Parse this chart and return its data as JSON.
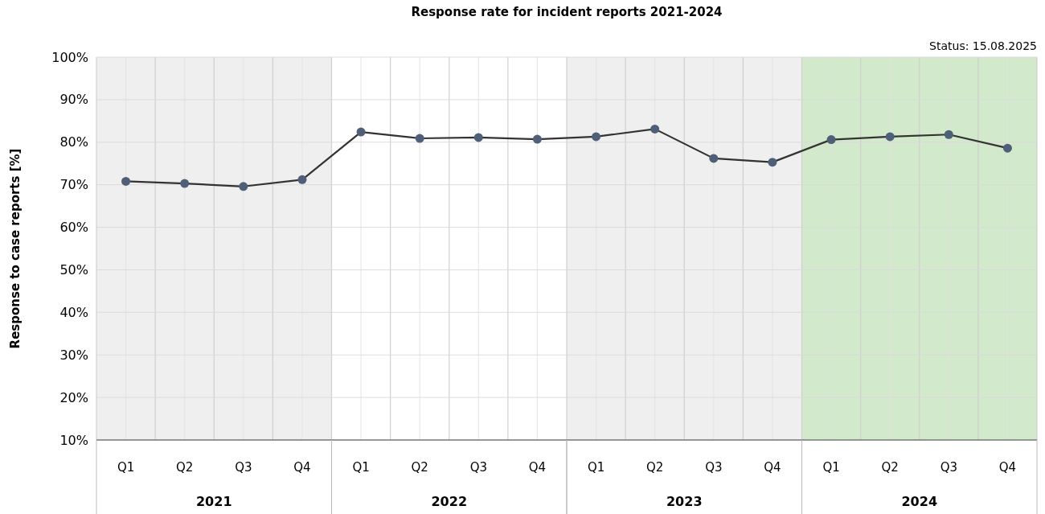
{
  "chart_data": {
    "type": "line",
    "title": "Response rate for incident reports 2021-2024",
    "ylabel": "Response to case reports [%]",
    "annotations": [
      "Status: 15.08.2025",
      "2021",
      "2022",
      "2023",
      "2024"
    ],
    "categories": [
      "Q1",
      "Q2",
      "Q3",
      "Q4",
      "Q1",
      "Q2",
      "Q3",
      "Q4",
      "Q1",
      "Q2",
      "Q3",
      "Q4",
      "Q1",
      "Q2",
      "Q3",
      "Q4"
    ],
    "series": [
      {
        "color": "#333333",
        "values": [
          70.8,
          70.3,
          69.6,
          71.2,
          82.4,
          80.9,
          81.1,
          80.7,
          81.3,
          83.1,
          76.2,
          75.3,
          80.6,
          81.3,
          81.8,
          78.6
        ]
      }
    ],
    "marker": "circle",
    "ylim": [
      10,
      100
    ],
    "yticks": [
      {
        "value": 10,
        "label": "10%"
      },
      {
        "value": 20,
        "label": "20%"
      },
      {
        "value": 30,
        "label": "30%"
      },
      {
        "value": 40,
        "label": "40%"
      },
      {
        "value": 50,
        "label": "50%"
      },
      {
        "value": 60,
        "label": "60%"
      },
      {
        "value": 70,
        "label": "70%"
      },
      {
        "value": 80,
        "label": "80%"
      },
      {
        "value": 90,
        "label": "90%"
      },
      {
        "value": 100,
        "label": "100%"
      }
    ],
    "grid": true
  }
}
